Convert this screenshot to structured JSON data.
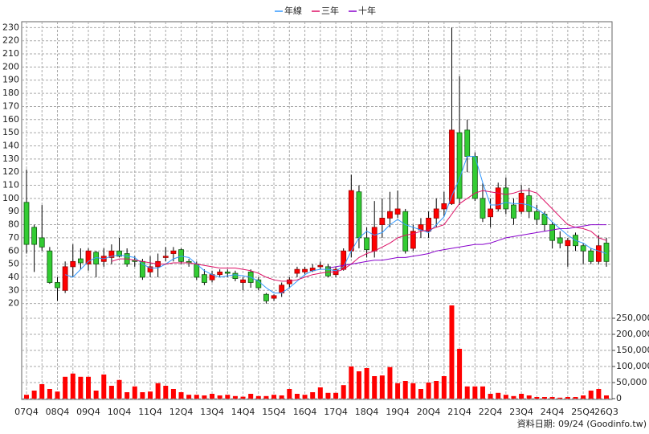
{
  "chart_data": {
    "type": "candlestick",
    "legend": "top",
    "grid": true,
    "categories": [
      "07Q4",
      null,
      null,
      null,
      "08Q4",
      null,
      null,
      null,
      "09Q4",
      null,
      null,
      null,
      "10Q4",
      null,
      null,
      null,
      "11Q4",
      null,
      null,
      null,
      "12Q4",
      null,
      null,
      null,
      "13Q4",
      null,
      null,
      null,
      "14Q4",
      null,
      null,
      null,
      "15Q4",
      null,
      null,
      null,
      "16Q4",
      null,
      null,
      null,
      "17Q4",
      null,
      null,
      null,
      "18Q4",
      null,
      null,
      null,
      "19Q4",
      null,
      null,
      null,
      "20Q4",
      null,
      null,
      null,
      "21Q4",
      null,
      null,
      null,
      "22Q4",
      null,
      null,
      null,
      "23Q4",
      null,
      null,
      null,
      "24Q4",
      null,
      null,
      null,
      "25Q4",
      null,
      null,
      "26Q3"
    ],
    "open": [
      97,
      78,
      70,
      60,
      36,
      30,
      48,
      54,
      50,
      59,
      52,
      55,
      60,
      58,
      53,
      52,
      44,
      48,
      55,
      58,
      61,
      52,
      50,
      42,
      38,
      42,
      44,
      43,
      36,
      44,
      38,
      27,
      24,
      28,
      35,
      43,
      44,
      45,
      48,
      48,
      42,
      46,
      60,
      105,
      70,
      60,
      80,
      85,
      88,
      90,
      62,
      76,
      75,
      85,
      92,
      96,
      150,
      152,
      132,
      100,
      86,
      92,
      108,
      95,
      90,
      102,
      90,
      88,
      80,
      70,
      64,
      72,
      64,
      60,
      52,
      66
    ],
    "high": [
      122,
      80,
      95,
      63,
      40,
      52,
      65,
      62,
      62,
      60,
      62,
      65,
      70,
      62,
      56,
      54,
      56,
      58,
      63,
      63,
      62,
      54,
      52,
      46,
      45,
      46,
      46,
      45,
      40,
      46,
      40,
      28,
      27,
      36,
      40,
      48,
      48,
      50,
      52,
      50,
      48,
      62,
      118,
      110,
      78,
      98,
      100,
      105,
      106,
      92,
      80,
      85,
      90,
      100,
      105,
      230,
      193,
      160,
      135,
      112,
      100,
      112,
      116,
      100,
      110,
      108,
      95,
      90,
      82,
      75,
      70,
      74,
      66,
      62,
      72,
      70
    ],
    "low": [
      58,
      44,
      60,
      35,
      22,
      28,
      40,
      46,
      45,
      40,
      48,
      50,
      55,
      48,
      48,
      38,
      40,
      40,
      52,
      52,
      50,
      48,
      38,
      34,
      36,
      40,
      40,
      37,
      30,
      32,
      30,
      20,
      22,
      25,
      32,
      40,
      42,
      44,
      46,
      40,
      40,
      45,
      55,
      62,
      55,
      55,
      70,
      78,
      85,
      58,
      60,
      70,
      70,
      78,
      86,
      95,
      95,
      120,
      98,
      82,
      78,
      90,
      88,
      80,
      88,
      85,
      80,
      75,
      62,
      62,
      48,
      60,
      50,
      50,
      50,
      48
    ],
    "close": [
      65,
      65,
      63,
      36,
      32,
      48,
      52,
      51,
      60,
      50,
      56,
      60,
      56,
      50,
      52,
      40,
      48,
      52,
      56,
      60,
      52,
      51,
      40,
      36,
      42,
      44,
      43,
      39,
      38,
      36,
      32,
      22,
      26,
      34,
      38,
      46,
      46,
      47,
      49,
      41,
      46,
      60,
      106,
      70,
      61,
      78,
      85,
      90,
      92,
      60,
      75,
      80,
      85,
      92,
      96,
      152,
      100,
      132,
      100,
      85,
      92,
      108,
      92,
      85,
      104,
      90,
      84,
      80,
      68,
      66,
      68,
      64,
      60,
      52,
      64,
      52
    ],
    "up_color": "#ff0000",
    "down_color": "#33cc33",
    "volume": [
      12000,
      25000,
      45000,
      30000,
      22000,
      68000,
      78000,
      68000,
      68000,
      25000,
      75000,
      40000,
      58000,
      20000,
      38000,
      20000,
      22000,
      48000,
      40000,
      30000,
      20000,
      12000,
      12000,
      10000,
      15000,
      10000,
      12000,
      8000,
      6000,
      15000,
      8000,
      8000,
      12000,
      10000,
      30000,
      15000,
      12000,
      20000,
      35000,
      18000,
      18000,
      42000,
      100000,
      85000,
      95000,
      70000,
      72000,
      98000,
      48000,
      55000,
      48000,
      30000,
      50000,
      55000,
      70000,
      290000,
      155000,
      38000,
      38000,
      38000,
      15000,
      18000,
      12000,
      8000,
      15000,
      10000,
      5000,
      5000,
      5000,
      3000,
      5000,
      5000,
      10000,
      25000,
      30000,
      10000
    ],
    "volume_color": "#ff0000",
    "series": [
      {
        "name": "年線",
        "color": "#3399ff",
        "values": [
          null,
          null,
          null,
          null,
          null,
          42,
          40,
          46,
          52,
          55,
          54,
          56,
          57,
          56,
          55,
          50,
          47,
          47,
          50,
          54,
          56,
          55,
          50,
          45,
          42,
          40,
          41,
          42,
          41,
          40,
          37,
          32,
          28,
          28,
          32,
          37,
          42,
          45,
          46,
          46,
          45,
          48,
          60,
          70,
          75,
          72,
          74,
          80,
          84,
          80,
          78,
          76,
          74,
          80,
          86,
          102,
          115,
          132,
          132,
          112,
          95,
          95,
          97,
          96,
          96,
          95,
          92,
          88,
          82,
          77,
          72,
          68,
          66,
          62,
          60,
          58
        ]
      },
      {
        "name": "三年",
        "color": "#dd1166",
        "values": [
          null,
          null,
          null,
          null,
          null,
          null,
          null,
          null,
          null,
          null,
          null,
          52,
          54,
          54,
          53,
          52,
          51,
          50,
          50,
          51,
          51,
          51,
          50,
          49,
          48,
          47,
          47,
          47,
          46,
          45,
          43,
          40,
          38,
          37,
          37,
          38,
          40,
          42,
          43,
          44,
          44,
          46,
          50,
          55,
          58,
          60,
          63,
          66,
          70,
          72,
          73,
          75,
          76,
          78,
          80,
          88,
          96,
          100,
          104,
          106,
          105,
          104,
          103,
          104,
          106,
          106,
          104,
          98,
          92,
          86,
          80,
          78,
          77,
          75,
          70,
          68
        ]
      },
      {
        "name": "十年",
        "color": "#8800cc",
        "values": [
          null,
          null,
          null,
          null,
          null,
          null,
          null,
          null,
          null,
          null,
          null,
          null,
          null,
          null,
          null,
          null,
          null,
          null,
          null,
          null,
          null,
          null,
          null,
          null,
          null,
          null,
          null,
          null,
          null,
          null,
          null,
          null,
          null,
          null,
          null,
          null,
          null,
          null,
          null,
          47,
          48,
          49,
          50,
          51,
          52,
          53,
          53,
          54,
          55,
          55,
          56,
          57,
          58,
          60,
          61,
          62,
          63,
          64,
          65,
          65,
          66,
          68,
          70,
          71,
          72,
          73,
          74,
          75,
          76,
          77,
          77,
          78,
          79,
          80,
          80,
          80
        ]
      }
    ],
    "ylim": [
      15.5,
      234.5
    ],
    "yticks": [
      20,
      30,
      40,
      50,
      60,
      70,
      80,
      90,
      100,
      110,
      120,
      130,
      140,
      150,
      160,
      170,
      180,
      190,
      200,
      210,
      220,
      230
    ],
    "y2lim": [
      0,
      290000
    ],
    "y2ticks": [
      0,
      {
        "value": 50000,
        "label": "50,000"
      },
      {
        "value": 100000,
        "label": "100,000"
      },
      {
        "value": 150000,
        "label": "150,000"
      },
      {
        "value": 200000,
        "label": "200,000"
      },
      {
        "value": 250000,
        "label": "250,000"
      }
    ],
    "footnote": "資料日期: 09/24 (Goodinfo.tw)"
  }
}
